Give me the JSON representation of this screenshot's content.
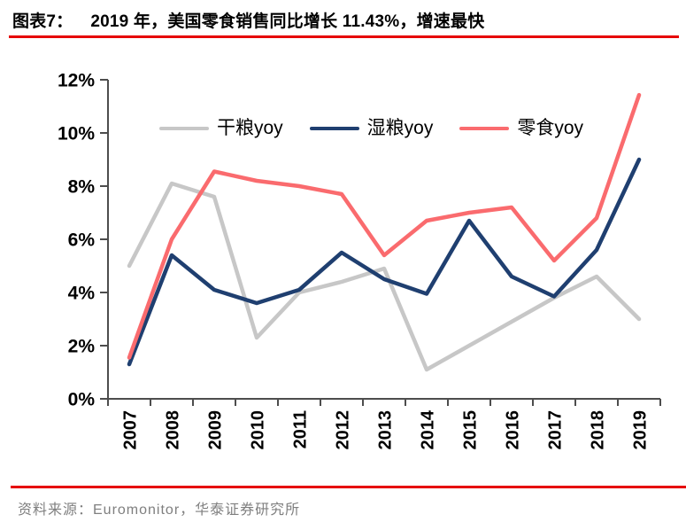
{
  "header": {
    "label": "图表7：",
    "title": "2019 年，美国零食销售同比增长 11.43%，增速最快"
  },
  "footer": {
    "source": "资料来源：Euromonitor，华泰证券研究所"
  },
  "chart_data": {
    "type": "line",
    "title": "2019 年，美国零食销售同比增长 11.43%，增速最快",
    "categories": [
      "2007",
      "2008",
      "2009",
      "2010",
      "2011",
      "2012",
      "2013",
      "2014",
      "2015",
      "2016",
      "2017",
      "2018",
      "2019"
    ],
    "series": [
      {
        "name": "干粮yoy",
        "color": "#c7c7c7",
        "values": [
          5.0,
          8.1,
          7.6,
          2.3,
          4.0,
          4.4,
          4.9,
          1.1,
          2.0,
          2.9,
          3.8,
          4.6,
          3.0
        ]
      },
      {
        "name": "湿粮yoy",
        "color": "#1f3f70",
        "values": [
          1.3,
          5.4,
          4.1,
          3.6,
          4.1,
          5.5,
          4.5,
          3.95,
          6.7,
          4.6,
          3.85,
          5.6,
          9.0
        ]
      },
      {
        "name": "零食yoy",
        "color": "#fa6b6e",
        "values": [
          1.55,
          6.0,
          8.55,
          8.2,
          8.0,
          7.7,
          5.4,
          6.7,
          7.0,
          7.2,
          5.2,
          6.8,
          11.43
        ]
      }
    ],
    "xlabel": "",
    "ylabel": "",
    "ylim": [
      0,
      12
    ],
    "ytick_step": 2,
    "ytick_suffix": "%",
    "grid": false,
    "legend_position": "top",
    "axis_color": "#4d4d4d",
    "tick_label_color": "#000000"
  }
}
